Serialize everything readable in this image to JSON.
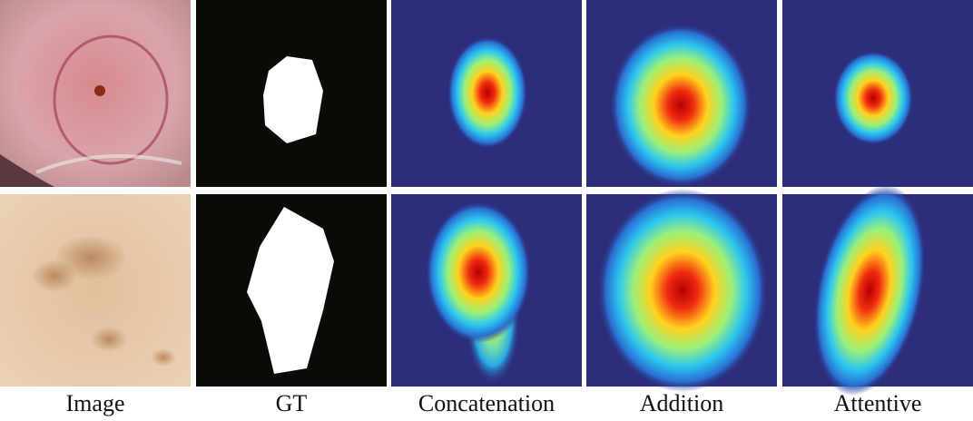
{
  "figure": {
    "column_labels": [
      "Image",
      "GT",
      "Concatenation",
      "Addition",
      "Attentive"
    ]
  }
}
